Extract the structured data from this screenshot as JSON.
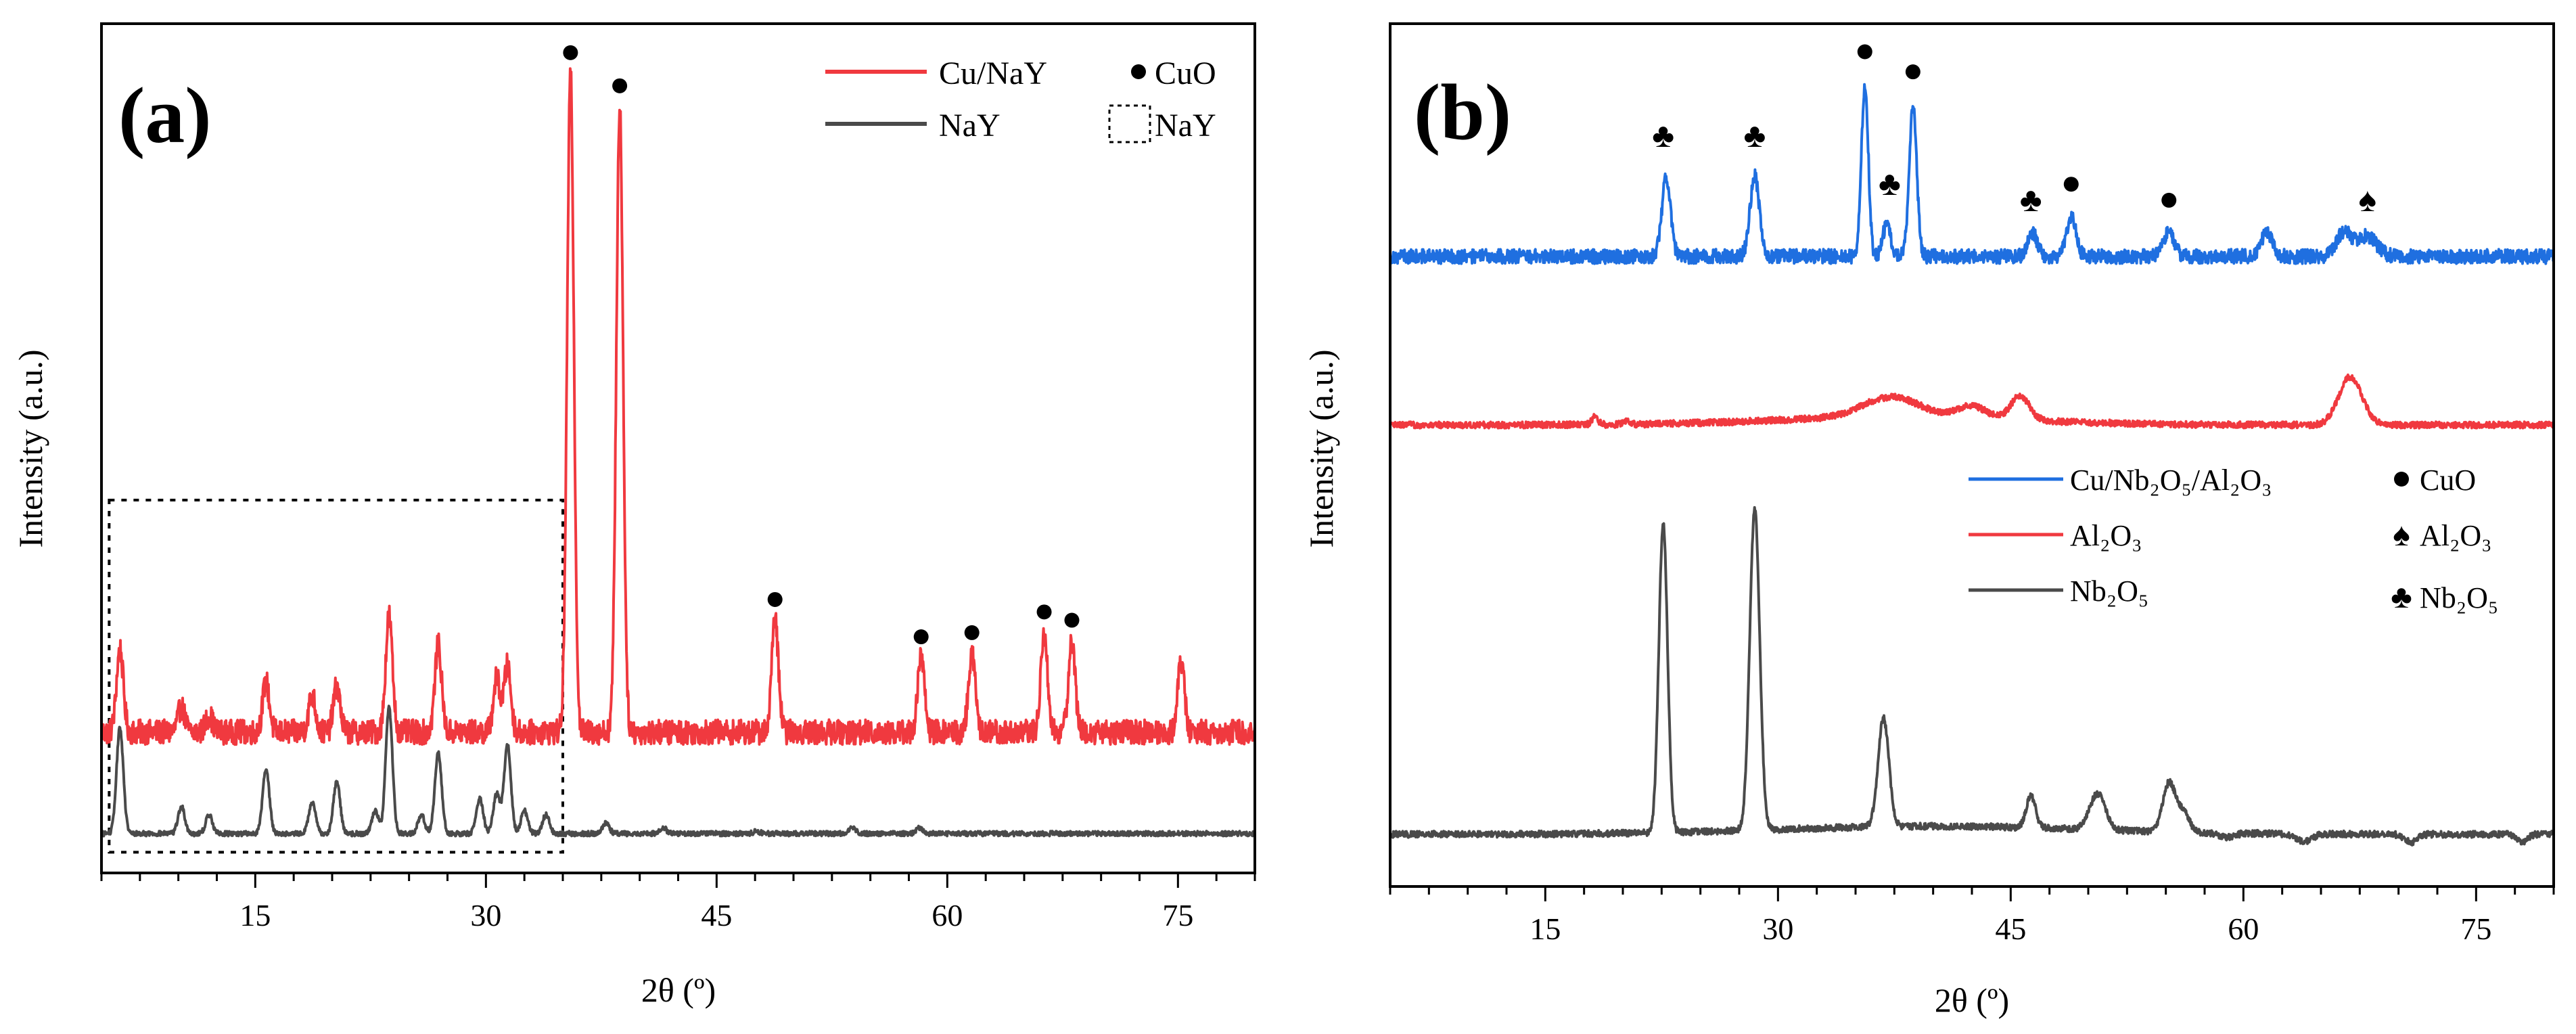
{
  "chart_data": [
    {
      "panel_label": "(a)",
      "type": "line",
      "xlabel": "2θ (º)",
      "ylabel": "Intensity (a.u.)",
      "xlim": [
        5,
        80
      ],
      "xticks": [
        15,
        30,
        45,
        60,
        75
      ],
      "y_ticks_visible": false,
      "grid": false,
      "legend": {
        "placement": "top-right",
        "entries": [
          {
            "label": "Cu/NaY",
            "kind": "line",
            "color": "#f0393f"
          },
          {
            "label": "NaY",
            "kind": "line",
            "color": "#4a4a4a"
          },
          {
            "label": "CuO",
            "kind": "marker",
            "symbol": "circle"
          },
          {
            "label": "NaY",
            "kind": "marker",
            "symbol": "dashed-box"
          }
        ]
      },
      "series": [
        {
          "name": "Cu/NaY",
          "color": "#f0393f",
          "baseline": 0.29,
          "noise": 0.03,
          "x": [
            6.2,
            10.2,
            12.0,
            15.7,
            18.7,
            20.3,
            23.7,
            26.9,
            30.7,
            31.4,
            35.5,
            38.7,
            48.8,
            58.3,
            61.6,
            66.3,
            68.1,
            75.2
          ],
          "y": [
            0.49,
            0.35,
            0.33,
            0.41,
            0.38,
            0.4,
            0.57,
            0.5,
            0.42,
            0.45,
            1.88,
            1.8,
            0.56,
            0.47,
            0.48,
            0.53,
            0.51,
            0.46
          ]
        },
        {
          "name": "NaY",
          "color": "#4a4a4a",
          "baseline": 0.045,
          "noise": 0.006,
          "x": [
            6.2,
            10.2,
            12.0,
            15.7,
            18.7,
            20.3,
            22.8,
            23.7,
            25.8,
            26.9,
            29.6,
            30.7,
            31.4,
            32.5,
            33.9,
            37.8,
            41.5,
            47.6,
            53.8,
            58.2
          ],
          "y": [
            0.3,
            0.11,
            0.09,
            0.2,
            0.12,
            0.17,
            0.1,
            0.35,
            0.09,
            0.24,
            0.13,
            0.14,
            0.26,
            0.1,
            0.09,
            0.07,
            0.06,
            0.05,
            0.06,
            0.06
          ]
        }
      ],
      "markers": [
        {
          "symbol": "circle",
          "label": "CuO",
          "x": [
            35.5,
            38.7,
            48.8,
            58.3,
            61.6,
            66.3,
            68.1
          ],
          "y": [
            1.93,
            1.85,
            0.61,
            0.52,
            0.53,
            0.58,
            0.56
          ]
        }
      ],
      "annotations": [
        {
          "kind": "dashed-box",
          "label": "NaY",
          "x_range": [
            5.5,
            35.0
          ],
          "y_range": [
            0.0,
            0.85
          ]
        }
      ],
      "ylim": [
        -0.05,
        2.0
      ]
    },
    {
      "panel_label": "(b)",
      "type": "line",
      "xlabel": "2θ (º)",
      "ylabel": "Intensity (a.u.)",
      "xlim": [
        5,
        80
      ],
      "xticks": [
        15,
        30,
        45,
        60,
        75
      ],
      "y_ticks_visible": false,
      "grid": false,
      "legend": {
        "placement": "center-right",
        "entries": [
          {
            "label": "Cu/Nb₂O₅/Al₂O₃",
            "kind": "line",
            "color": "#1f6fe0"
          },
          {
            "label": "Al₂O₃",
            "kind": "line",
            "color": "#f0393f"
          },
          {
            "label": "Nb₂O₅",
            "kind": "line",
            "color": "#4a4a4a"
          },
          {
            "label": "CuO",
            "kind": "marker",
            "symbol": "circle"
          },
          {
            "label": "Al₂O₃",
            "kind": "marker",
            "symbol": "spade"
          },
          {
            "label": "Nb₂O₅",
            "kind": "marker",
            "symbol": "club"
          }
        ]
      },
      "series": [
        {
          "name": "Cu/Nb₂O₅/Al₂O₃",
          "color": "#1f6fe0",
          "baseline": 1.52,
          "noise": 0.018,
          "x": [
            22.8,
            28.5,
            35.6,
            37.0,
            38.7,
            46.4,
            48.9,
            55.2,
            61.5,
            66.5,
            68.0
          ],
          "y": [
            1.72,
            1.72,
            1.95,
            1.6,
            1.9,
            1.58,
            1.62,
            1.58,
            1.58,
            1.58,
            1.57
          ],
          "peak_widths": [
            0.28,
            0.3,
            0.22,
            0.25,
            0.24,
            0.3,
            0.3,
            0.35,
            0.35,
            0.5,
            0.6
          ]
        },
        {
          "name": "Al₂O₃",
          "color": "#f0393f",
          "baseline": 1.1,
          "noise": 0.008,
          "x": [
            18.2,
            20.2,
            37.3,
            42.5,
            45.6,
            66.9
          ],
          "y": [
            1.12,
            1.11,
            1.15,
            1.13,
            1.16,
            1.22
          ],
          "peak_widths": [
            0.2,
            0.2,
            1.8,
            0.9,
            0.6,
            0.75
          ]
        },
        {
          "name": "Nb₂O₅",
          "color": "#4a4a4a",
          "baseline": 0.08,
          "noise": 0.008,
          "x": [
            22.6,
            28.5,
            36.8,
            46.3,
            50.6,
            55.2,
            56.1,
            58.9,
            63.9,
            70.8,
            78.0
          ],
          "y": [
            0.85,
            0.88,
            0.35,
            0.16,
            0.17,
            0.2,
            0.13,
            0.07,
            0.06,
            0.06,
            0.06
          ],
          "peak_widths": [
            0.28,
            0.32,
            0.35,
            0.3,
            0.5,
            0.4,
            0.4,
            0.5,
            0.5,
            0.4,
            0.3
          ]
        }
      ],
      "markers": [
        {
          "symbol": "club",
          "label": "Nb₂O₅",
          "x": [
            22.6,
            28.5,
            37.2,
            46.3
          ],
          "y": [
            1.82,
            1.82,
            1.7,
            1.66
          ]
        },
        {
          "symbol": "circle",
          "label": "CuO",
          "x": [
            35.6,
            38.7,
            48.9,
            55.2
          ],
          "y": [
            2.03,
            1.98,
            1.7,
            1.66
          ]
        },
        {
          "symbol": "spade",
          "label": "Al₂O₃",
          "x": [
            68.0
          ],
          "y": [
            1.66
          ]
        }
      ],
      "ylim": [
        -0.05,
        2.1
      ]
    }
  ]
}
